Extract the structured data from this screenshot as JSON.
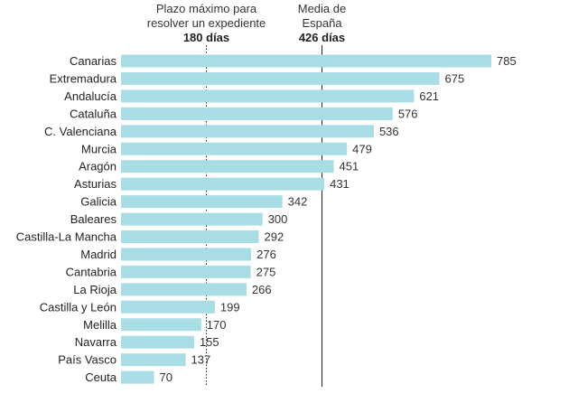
{
  "chart_data": {
    "type": "bar",
    "orientation": "horizontal",
    "categories": [
      "Canarias",
      "Extremadura",
      "Andalucía",
      "Cataluña",
      "C. Valenciana",
      "Murcia",
      "Aragón",
      "Asturias",
      "Galicia",
      "Baleares",
      "Castilla-La Mancha",
      "Madrid",
      "Cantabria",
      "La Rioja",
      "Castilla y León",
      "Melilla",
      "Navarra",
      "País Vasco",
      "Ceuta"
    ],
    "values": [
      785,
      675,
      621,
      576,
      536,
      479,
      451,
      431,
      342,
      300,
      292,
      276,
      275,
      266,
      199,
      170,
      155,
      137,
      70
    ],
    "bar_color": "#a8dde5",
    "xlim": [
      0,
      785
    ],
    "grid": false,
    "reference_lines": [
      {
        "value": 180,
        "style": "dotted",
        "label_lines": [
          "Plazo máximo para",
          "resolver un expediente"
        ],
        "label_value": "180 días"
      },
      {
        "value": 426,
        "style": "solid",
        "label_lines": [
          "Media de",
          "España"
        ],
        "label_value": "426 días"
      }
    ]
  }
}
